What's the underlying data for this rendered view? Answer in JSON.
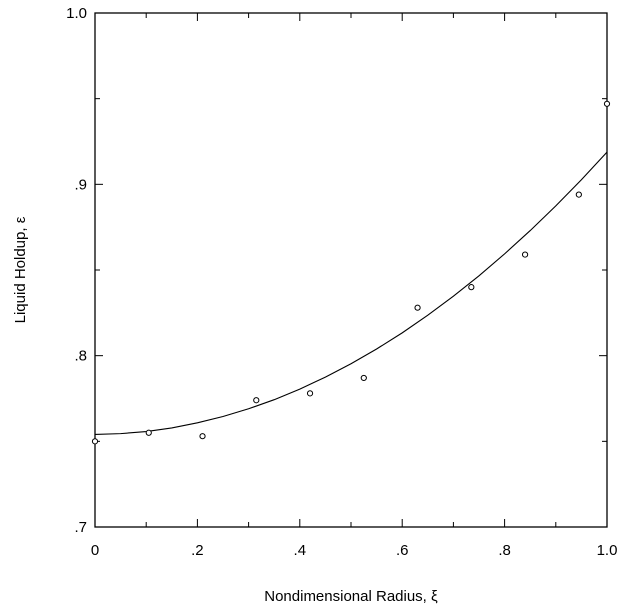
{
  "chart_data": {
    "type": "scatter",
    "title": "",
    "xlabel": "Nondimensional Radius, ξ",
    "ylabel": "Liquid Holdup, ε",
    "xlim": [
      0,
      1.0
    ],
    "ylim": [
      0.7,
      1.0
    ],
    "x_ticks": [
      {
        "value": 0,
        "label": "0"
      },
      {
        "value": 0.2,
        "label": ".2"
      },
      {
        "value": 0.4,
        "label": ".4"
      },
      {
        "value": 0.6,
        "label": ".6"
      },
      {
        "value": 0.8,
        "label": ".8"
      },
      {
        "value": 1.0,
        "label": "1.0"
      }
    ],
    "y_ticks": [
      {
        "value": 0.7,
        "label": ".7"
      },
      {
        "value": 0.8,
        "label": ".8"
      },
      {
        "value": 0.9,
        "label": ".9"
      },
      {
        "value": 1.0,
        "label": "1.0"
      }
    ],
    "grid": false,
    "series": [
      {
        "kind": "points",
        "marker": "open-circle",
        "x": [
          0.0,
          0.105,
          0.21,
          0.315,
          0.42,
          0.525,
          0.63,
          0.735,
          0.84,
          0.945,
          1.0
        ],
        "y": [
          0.75,
          0.755,
          0.753,
          0.774,
          0.778,
          0.787,
          0.828,
          0.84,
          0.859,
          0.894,
          0.947
        ]
      },
      {
        "kind": "line",
        "x": [
          0.0,
          0.05,
          0.1,
          0.15,
          0.2,
          0.25,
          0.3,
          0.35,
          0.4,
          0.45,
          0.5,
          0.55,
          0.6,
          0.65,
          0.7,
          0.75,
          0.8,
          0.85,
          0.9,
          0.95,
          1.0
        ],
        "y": [
          0.754,
          0.7545,
          0.7557,
          0.7578,
          0.7608,
          0.7645,
          0.769,
          0.7743,
          0.7805,
          0.7875,
          0.7953,
          0.8039,
          0.8133,
          0.8236,
          0.8347,
          0.8466,
          0.8594,
          0.873,
          0.8874,
          0.9027,
          0.9188
        ]
      }
    ]
  }
}
